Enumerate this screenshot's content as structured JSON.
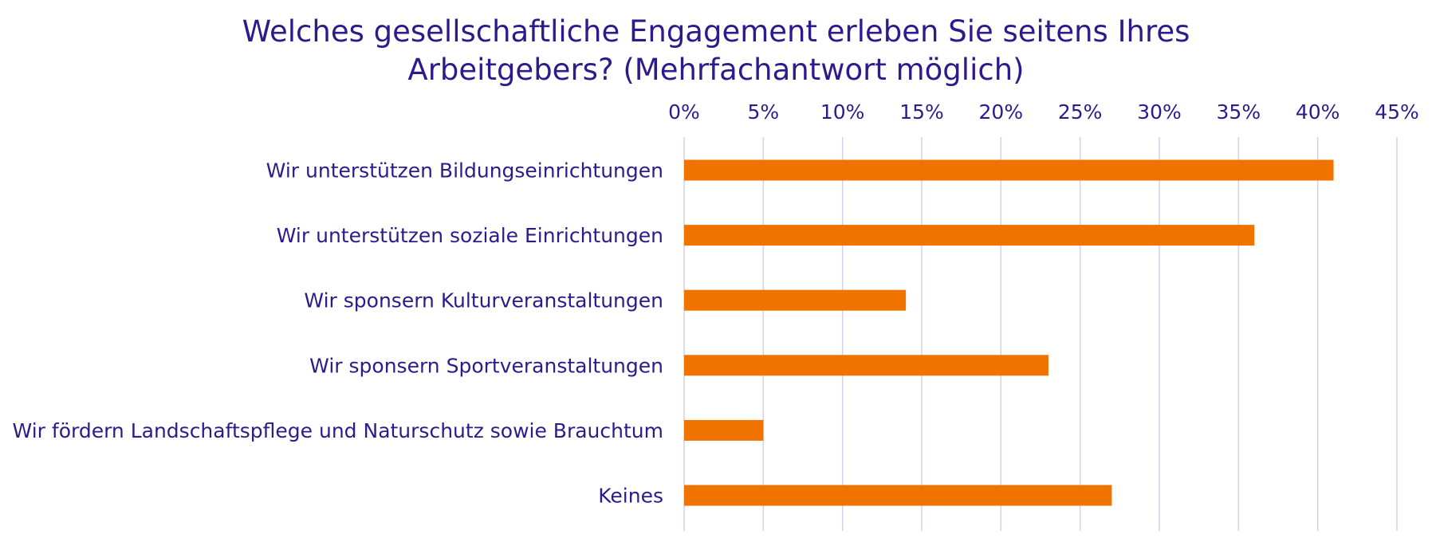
{
  "chart_data": {
    "type": "bar",
    "orientation": "horizontal",
    "title": [
      "Welches gesellschaftliche Engagement erleben Sie seitens Ihres",
      "Arbeitgebers? (Mehrfachantwort möglich)"
    ],
    "categories": [
      "Wir unterstützen Bildungseinrichtungen",
      "Wir unterstützen soziale Einrichtungen",
      "Wir sponsern Kulturveranstaltungen",
      "Wir sponsern Sportveranstaltungen",
      "Wir fördern Landschaftspflege und Naturschutz sowie Brauchtum",
      "Keines"
    ],
    "values": [
      41,
      36,
      14,
      23,
      5,
      27
    ],
    "unit": "%",
    "xlim": [
      0,
      45
    ],
    "x_ticks": [
      0,
      5,
      10,
      15,
      20,
      25,
      30,
      35,
      40,
      45
    ],
    "x_tick_labels": [
      "0%",
      "5%",
      "10%",
      "15%",
      "20%",
      "25%",
      "30%",
      "35%",
      "40%",
      "45%"
    ],
    "x_axis_position": "top",
    "grid": true,
    "legend": "none",
    "colors": {
      "bar": "#f07300",
      "text": "#2e1a8c",
      "grid": "#d4d0ec"
    }
  }
}
